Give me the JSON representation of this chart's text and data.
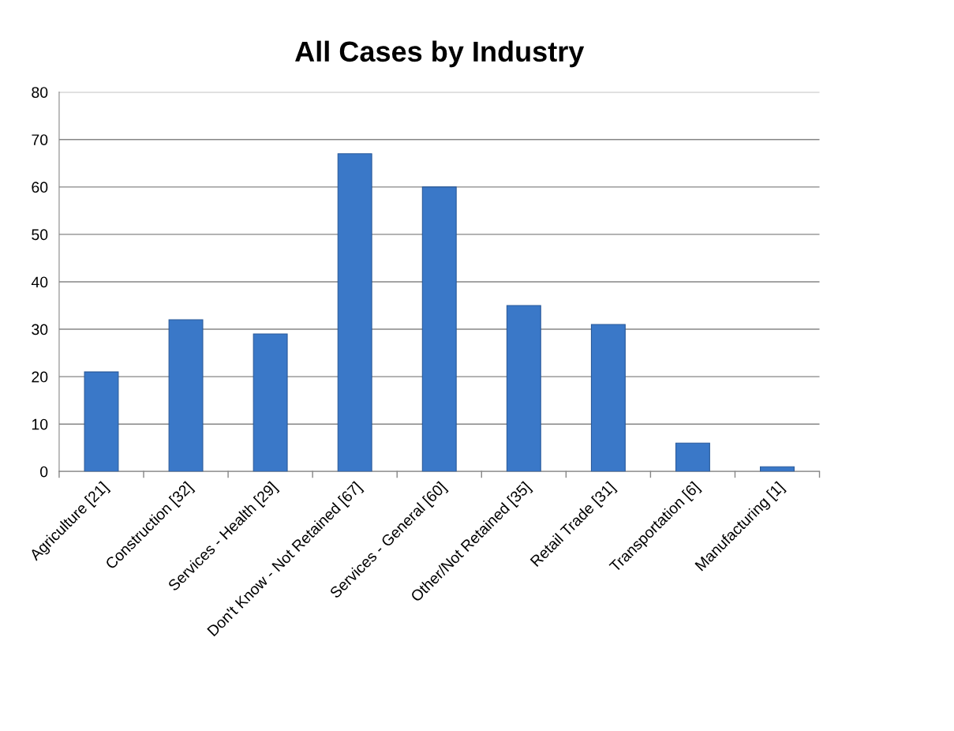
{
  "chart_data": {
    "type": "bar",
    "title": "All Cases by Industry",
    "categories": [
      "Agriculture [21]",
      "Construction [32]",
      "Services - Health [29]",
      "Don't Know - Not Retained [67]",
      "Services - General [60]",
      "Other/Not Retained [35]",
      "Retail Trade [31]",
      "Transportation [6]",
      "Manufacturing [1]"
    ],
    "values": [
      21,
      32,
      29,
      67,
      60,
      35,
      31,
      6,
      1
    ],
    "color": "#3a78c8",
    "ylim": [
      0,
      80
    ],
    "yticks": [
      0,
      10,
      20,
      30,
      40,
      50,
      60,
      70,
      80
    ],
    "grid": "y",
    "legend": false
  }
}
